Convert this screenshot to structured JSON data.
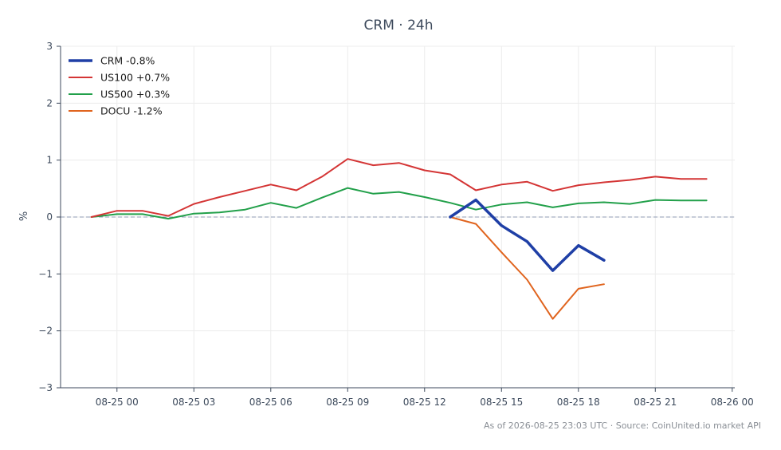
{
  "chart_data": {
    "type": "line",
    "title": "CRM · 24h",
    "ylabel": "%",
    "ylim": [
      -3,
      3
    ],
    "yticks": [
      {
        "value": 3,
        "label": "3"
      },
      {
        "value": 2,
        "label": "2"
      },
      {
        "value": 1,
        "label": "1"
      },
      {
        "value": 0,
        "label": "0"
      },
      {
        "value": -1,
        "label": "−1"
      },
      {
        "value": -2,
        "label": "−2"
      },
      {
        "value": -3,
        "label": "−3"
      }
    ],
    "xlim": [
      -2.2,
      24.1
    ],
    "xticks": [
      {
        "value": 0,
        "label": "08-25 00"
      },
      {
        "value": 3,
        "label": "08-25 03"
      },
      {
        "value": 6,
        "label": "08-25 06"
      },
      {
        "value": 9,
        "label": "08-25 09"
      },
      {
        "value": 12,
        "label": "08-25 12"
      },
      {
        "value": 15,
        "label": "08-25 15"
      },
      {
        "value": 18,
        "label": "08-25 18"
      },
      {
        "value": 21,
        "label": "08-25 21"
      },
      {
        "value": 24,
        "label": "08-26 00"
      }
    ],
    "grid": true,
    "baseline": 0,
    "legend_position": "top-left",
    "series": [
      {
        "name": "CRM -0.8%",
        "color": "#1f3fa6",
        "width": 3.5,
        "x": [
          13,
          14,
          15,
          16,
          17,
          18,
          19
        ],
        "y": [
          0.0,
          0.3,
          -0.15,
          -0.43,
          -0.94,
          -0.5,
          -0.76
        ]
      },
      {
        "name": "US100 +0.7%",
        "color": "#d43535",
        "width": 2,
        "x": [
          -1,
          0,
          1,
          2,
          3,
          4,
          5,
          6,
          7,
          8,
          9,
          10,
          11,
          12,
          13,
          14,
          15,
          16,
          17,
          18,
          19,
          20,
          21,
          22,
          23
        ],
        "y": [
          0.0,
          0.11,
          0.11,
          0.02,
          0.23,
          0.35,
          0.46,
          0.57,
          0.47,
          0.71,
          1.02,
          0.91,
          0.95,
          0.82,
          0.75,
          0.47,
          0.57,
          0.62,
          0.46,
          0.56,
          0.61,
          0.65,
          0.71,
          0.67,
          0.67
        ]
      },
      {
        "name": "US500 +0.3%",
        "color": "#22a04a",
        "width": 2,
        "x": [
          -1,
          0,
          1,
          2,
          3,
          4,
          5,
          6,
          7,
          8,
          9,
          10,
          11,
          12,
          13,
          14,
          15,
          16,
          17,
          18,
          19,
          20,
          21,
          22,
          23
        ],
        "y": [
          0.0,
          0.05,
          0.05,
          -0.03,
          0.06,
          0.08,
          0.13,
          0.25,
          0.16,
          0.34,
          0.51,
          0.41,
          0.44,
          0.35,
          0.25,
          0.13,
          0.22,
          0.26,
          0.17,
          0.24,
          0.26,
          0.23,
          0.3,
          0.29,
          0.29
        ]
      },
      {
        "name": "DOCU -1.2%",
        "color": "#e0641e",
        "width": 2,
        "x": [
          13,
          14,
          15,
          16,
          17,
          18,
          19
        ],
        "y": [
          0.0,
          -0.12,
          -0.62,
          -1.1,
          -1.79,
          -1.26,
          -1.18
        ]
      }
    ],
    "footer": "As of 2026-08-25 23:03 UTC · Source: CoinUnited.io market API"
  }
}
